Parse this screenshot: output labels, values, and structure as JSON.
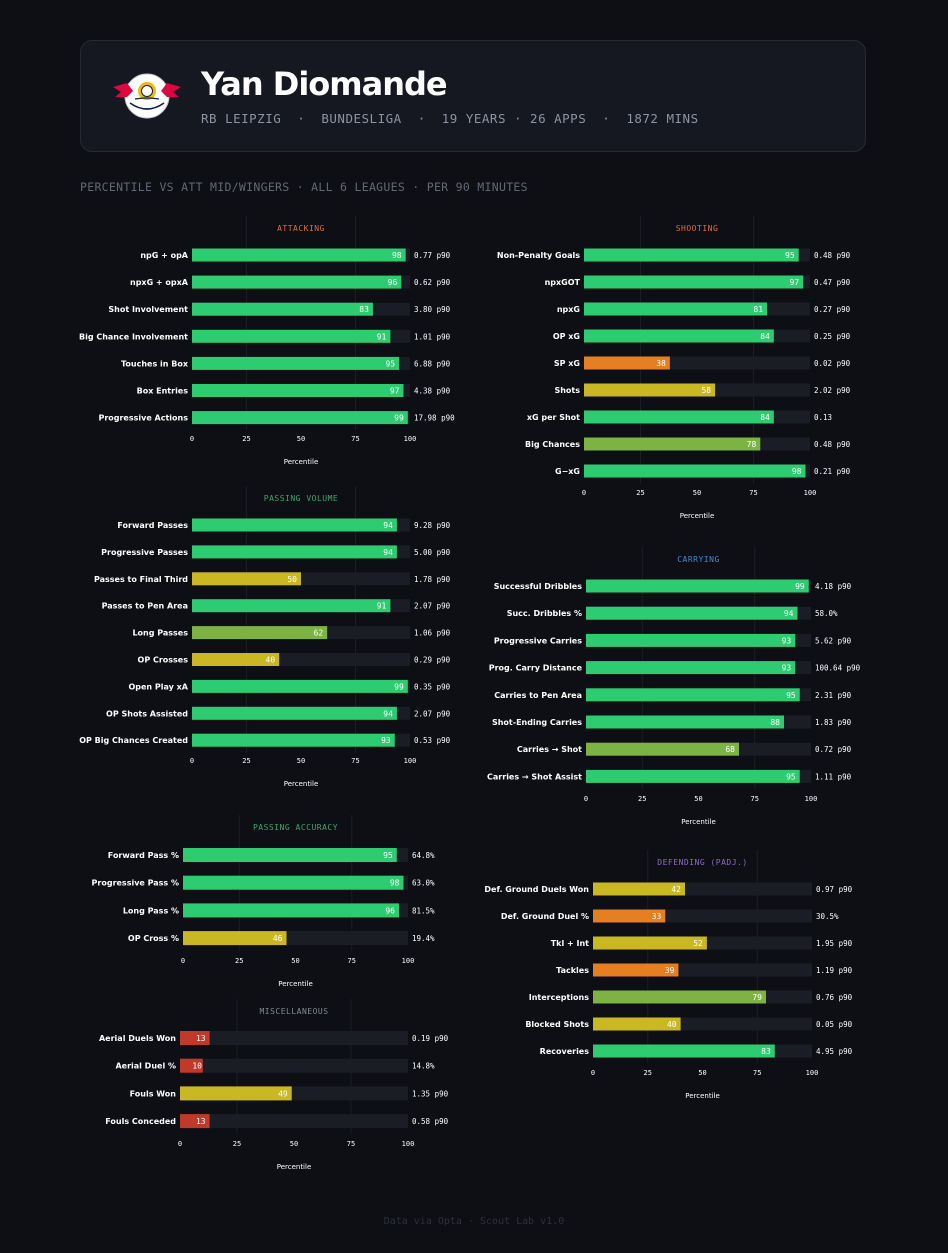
{
  "player": {
    "name": "Yan Diomande",
    "meta": "RB LEIPZIG  ·  BUNDESLIGA  ·  19 YEARS · 26 APPS  ·  1872 MINS",
    "badge_text": "RB LEIPZIG",
    "badge_colors": {
      "red": "#dd0741",
      "gold": "#f2b80c",
      "navy": "#0c2043"
    }
  },
  "subtitle": "PERCENTILE VS ATT MID/WINGERS · ALL 6 LEAGUES · PER 90 MINUTES",
  "footer": "Data via Opta · Scout Lab v1.0",
  "colors": {
    "elite": "#2ecc71",
    "good": "#7cb342",
    "average": "#c9b824",
    "weak": "#e67e22",
    "poor": "#c0392b",
    "track": "#1a1d26",
    "background": "#0d0f14"
  },
  "chart_data": [
    {
      "type": "bar",
      "orientation": "horizontal",
      "title": "ATTACKING",
      "title_color": "#e06c3a",
      "xlabel": "Percentile",
      "xlim": [
        0,
        100
      ],
      "xticks": [
        0,
        25,
        50,
        75,
        100
      ],
      "categories": [
        "npG + opA",
        "npxG + opxA",
        "Shot Involvement",
        "Big Chance Involvement",
        "Touches in Box",
        "Box Entries",
        "Progressive Actions"
      ],
      "values": [
        98,
        96,
        83,
        91,
        95,
        97,
        99
      ],
      "raw_values": [
        "0.77 p90",
        "0.62 p90",
        "3.80 p90",
        "1.01 p90",
        "6.88 p90",
        "4.38 p90",
        "17.98 p90"
      ]
    },
    {
      "type": "bar",
      "orientation": "horizontal",
      "title": "PASSING VOLUME",
      "title_color": "#3aa76d",
      "xlabel": "Percentile",
      "xlim": [
        0,
        100
      ],
      "xticks": [
        0,
        25,
        50,
        75,
        100
      ],
      "categories": [
        "Forward Passes",
        "Progressive Passes",
        "Passes to Final Third",
        "Passes to Pen Area",
        "Long Passes",
        "OP Crosses",
        "Open Play xA",
        "OP Shots Assisted",
        "OP Big Chances Created"
      ],
      "values": [
        94,
        94,
        50,
        91,
        62,
        40,
        99,
        94,
        93
      ],
      "raw_values": [
        "9.28 p90",
        "5.00 p90",
        "1.78 p90",
        "2.07 p90",
        "1.06 p90",
        "0.29 p90",
        "0.35 p90",
        "2.07 p90",
        "0.53 p90"
      ]
    },
    {
      "type": "bar",
      "orientation": "horizontal",
      "title": "PASSING ACCURACY",
      "title_color": "#3aa76d",
      "xlabel": "Percentile",
      "xlim": [
        0,
        100
      ],
      "xticks": [
        0,
        25,
        50,
        75,
        100
      ],
      "categories": [
        "Forward Pass %",
        "Progressive Pass %",
        "Long Pass %",
        "OP Cross %"
      ],
      "values": [
        95,
        98,
        96,
        46
      ],
      "raw_values": [
        "64.8%",
        "63.0%",
        "81.5%",
        "19.4%"
      ]
    },
    {
      "type": "bar",
      "orientation": "horizontal",
      "title": "MISCELLANEOUS",
      "title_color": "#7f8a99",
      "xlabel": "Percentile",
      "xlim": [
        0,
        100
      ],
      "xticks": [
        0,
        25,
        50,
        75,
        100
      ],
      "categories": [
        "Aerial Duels Won",
        "Aerial Duel %",
        "Fouls Won",
        "Fouls Conceded"
      ],
      "values": [
        13,
        10,
        49,
        13
      ],
      "raw_values": [
        "0.19 p90",
        "14.8%",
        "1.35 p90",
        "0.58 p90"
      ]
    },
    {
      "type": "bar",
      "orientation": "horizontal",
      "title": "SHOOTING",
      "title_color": "#e06c3a",
      "xlabel": "Percentile",
      "xlim": [
        0,
        100
      ],
      "xticks": [
        0,
        25,
        50,
        75,
        100
      ],
      "categories": [
        "Non-Penalty Goals",
        "npxGOT",
        "npxG",
        "OP xG",
        "SP xG",
        "Shots",
        "xG per Shot",
        "Big Chances",
        "G−xG"
      ],
      "values": [
        95,
        97,
        81,
        84,
        38,
        58,
        84,
        78,
        98
      ],
      "raw_values": [
        "0.48 p90",
        "0.47 p90",
        "0.27 p90",
        "0.25 p90",
        "0.02 p90",
        "2.02 p90",
        "0.13",
        "0.48 p90",
        "0.21 p90"
      ]
    },
    {
      "type": "bar",
      "orientation": "horizontal",
      "title": "CARRYING",
      "title_color": "#3b8bd4",
      "xlabel": "Percentile",
      "xlim": [
        0,
        100
      ],
      "xticks": [
        0,
        25,
        50,
        75,
        100
      ],
      "categories": [
        "Successful Dribbles",
        "Succ. Dribbles %",
        "Progressive Carries",
        "Prog. Carry Distance",
        "Carries to Pen Area",
        "Shot-Ending Carries",
        "Carries → Shot",
        "Carries → Shot Assist"
      ],
      "values": [
        99,
        94,
        93,
        93,
        95,
        88,
        68,
        95
      ],
      "raw_values": [
        "4.18 p90",
        "58.0%",
        "5.62 p90",
        "100.64 p90",
        "2.31 p90",
        "1.83 p90",
        "0.72 p90",
        "1.11 p90"
      ]
    },
    {
      "type": "bar",
      "orientation": "horizontal",
      "title": "DEFENDING (PADJ.)",
      "title_color": "#8e6cc4",
      "xlabel": "Percentile",
      "xlim": [
        0,
        100
      ],
      "xticks": [
        0,
        25,
        50,
        75,
        100
      ],
      "categories": [
        "Def. Ground Duels Won",
        "Def. Ground Duel %",
        "Tkl + Int",
        "Tackles",
        "Interceptions",
        "Blocked Shots",
        "Recoveries"
      ],
      "values": [
        42,
        33,
        52,
        39,
        79,
        40,
        83
      ],
      "raw_values": [
        "0.97 p90",
        "30.5%",
        "1.95 p90",
        "1.19 p90",
        "0.76 p90",
        "0.05 p90",
        "4.95 p90"
      ]
    }
  ]
}
